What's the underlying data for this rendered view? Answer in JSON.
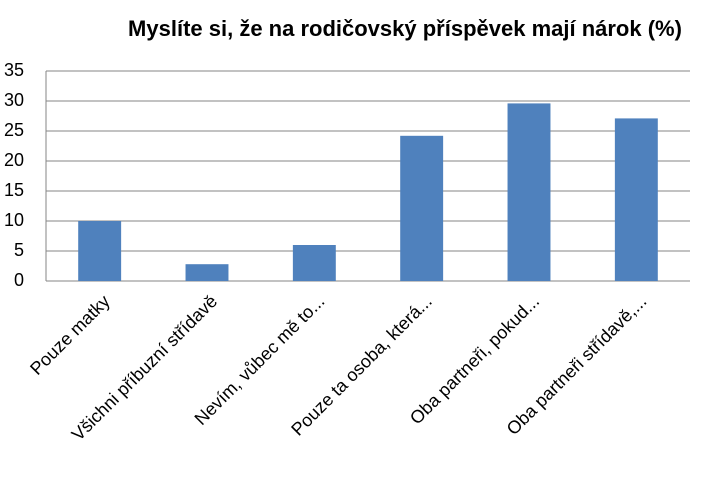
{
  "chart_data": {
    "type": "bar",
    "title": "Myslíte si, že na rodičovský příspěvek mají nárok (%)",
    "categories": [
      "Pouze matky",
      "Všichni příbuzní střídavě",
      "Nevím, vůbec mě to...",
      "Pouze ta osoba, která...",
      "Oba partneři, pokud...",
      "Oba partneři střídavě,..."
    ],
    "values": [
      10,
      2.8,
      6,
      24.2,
      29.6,
      27.1
    ],
    "color": "#4f81bd",
    "ylim": [
      0,
      35
    ],
    "yticks": [
      0,
      5,
      10,
      15,
      20,
      25,
      30,
      35
    ],
    "grid": true
  }
}
